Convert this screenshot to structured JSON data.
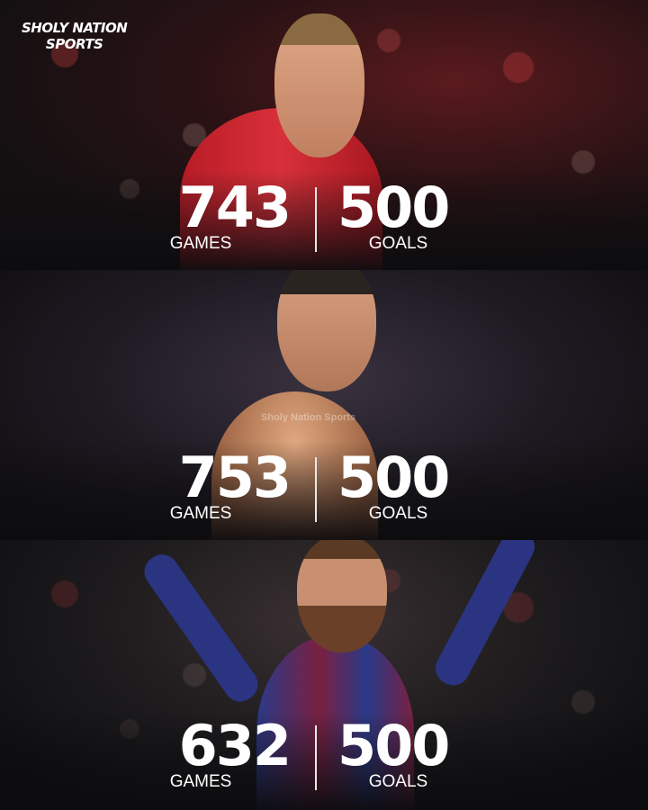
{
  "brand": {
    "logo_line1": "SHOLY NATION",
    "logo_line2": "SPORTS",
    "watermark": "Sholy Nation Sports"
  },
  "players": [
    {
      "games": "743",
      "games_label": "GAMES",
      "goals": "500",
      "goals_label": "GOALS",
      "kit_color": "#c8202a"
    },
    {
      "games": "753",
      "games_label": "GAMES",
      "goals": "500",
      "goals_label": "GOALS",
      "kit_color": "#c99070"
    },
    {
      "games": "632",
      "games_label": "GAMES",
      "goals": "500",
      "goals_label": "GOALS",
      "kit_color": "#2a3a8a"
    }
  ]
}
